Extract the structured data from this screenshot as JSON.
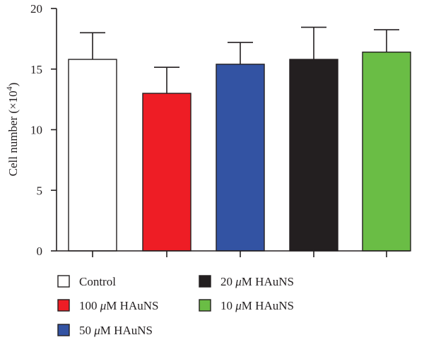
{
  "chart_data": {
    "type": "bar",
    "ylabel_main": "Cell number (×10",
    "ylabel_sup": "4",
    "ylabel_tail": ")",
    "ylim": [
      0,
      20
    ],
    "yticks": [
      "0",
      "5",
      "10",
      "15",
      "20"
    ],
    "categories": [
      "Control",
      "100 μM HAuNS",
      "50 μM HAuNS",
      "20 μM HAuNS",
      "10 μM HAuNS"
    ],
    "values": [
      15.8,
      13.0,
      15.4,
      15.8,
      16.4
    ],
    "errors": [
      2.2,
      2.15,
      1.8,
      2.65,
      1.85
    ],
    "colors": [
      "#ffffff",
      "#ee1d25",
      "#3353a3",
      "#231f20",
      "#6abd45"
    ],
    "grid": false,
    "legend_position": "bottom"
  },
  "legend": [
    {
      "num": "",
      "unit": "",
      "text": "Control"
    },
    {
      "num": "100 ",
      "unit": "μ",
      "text": "M HAuNS"
    },
    {
      "num": "50 ",
      "unit": "μ",
      "text": "M HAuNS"
    },
    {
      "num": "20 ",
      "unit": "μ",
      "text": "M HAuNS"
    },
    {
      "num": "10 ",
      "unit": "μ",
      "text": "M HAuNS"
    }
  ]
}
